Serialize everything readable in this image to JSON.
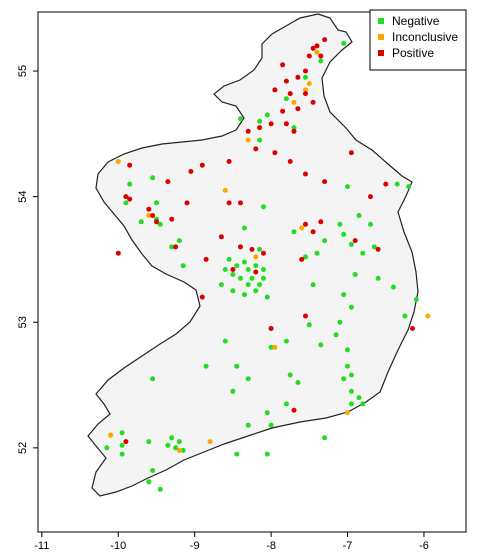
{
  "chart_data": {
    "type": "scatter",
    "title": "",
    "xlabel": "",
    "ylabel": "",
    "xlim": [
      -11.05,
      -5.45
    ],
    "ylim": [
      51.33,
      55.47
    ],
    "x_ticks": [
      -11,
      -10,
      -9,
      -8,
      -7,
      -6
    ],
    "y_ticks": [
      52,
      53,
      54,
      55
    ],
    "x_tick_labels": [
      "-11",
      "-10",
      "-9",
      "-8",
      "-7",
      "-6"
    ],
    "y_tick_labels": [
      "52",
      "53",
      "54",
      "55"
    ],
    "legend_position": "top-right",
    "series": [
      {
        "name": "Negative",
        "color": "#22dd22",
        "points": [
          [
            -7.05,
            55.22
          ],
          [
            -7.35,
            55.08
          ],
          [
            -7.55,
            54.95
          ],
          [
            -7.8,
            54.78
          ],
          [
            -8.05,
            54.65
          ],
          [
            -8.15,
            54.6
          ],
          [
            -8.4,
            54.62
          ],
          [
            -7.7,
            54.55
          ],
          [
            -8.15,
            54.45
          ],
          [
            -9.85,
            54.1
          ],
          [
            -9.9,
            53.95
          ],
          [
            -9.55,
            54.15
          ],
          [
            -9.5,
            53.95
          ],
          [
            -9.5,
            53.82
          ],
          [
            -9.45,
            53.78
          ],
          [
            -9.7,
            53.8
          ],
          [
            -9.3,
            53.6
          ],
          [
            -9.2,
            53.65
          ],
          [
            -9.15,
            53.45
          ],
          [
            -8.1,
            53.92
          ],
          [
            -7.0,
            54.08
          ],
          [
            -6.85,
            53.85
          ],
          [
            -6.35,
            54.1
          ],
          [
            -6.2,
            54.08
          ],
          [
            -7.1,
            53.78
          ],
          [
            -6.7,
            53.78
          ],
          [
            -6.95,
            53.62
          ],
          [
            -7.05,
            53.7
          ],
          [
            -6.65,
            53.6
          ],
          [
            -6.8,
            53.55
          ],
          [
            -7.3,
            53.65
          ],
          [
            -7.4,
            53.55
          ],
          [
            -7.55,
            53.52
          ],
          [
            -7.7,
            53.72
          ],
          [
            -8.35,
            53.75
          ],
          [
            -8.4,
            53.6
          ],
          [
            -8.15,
            53.58
          ],
          [
            -8.55,
            53.5
          ],
          [
            -8.35,
            53.48
          ],
          [
            -8.45,
            53.45
          ],
          [
            -8.3,
            53.42
          ],
          [
            -8.2,
            53.45
          ],
          [
            -8.1,
            53.42
          ],
          [
            -8.6,
            53.42
          ],
          [
            -8.5,
            53.38
          ],
          [
            -8.4,
            53.35
          ],
          [
            -8.25,
            53.35
          ],
          [
            -8.1,
            53.35
          ],
          [
            -8.65,
            53.3
          ],
          [
            -8.5,
            53.25
          ],
          [
            -8.35,
            53.22
          ],
          [
            -8.2,
            53.25
          ],
          [
            -8.05,
            53.2
          ],
          [
            -8.15,
            53.3
          ],
          [
            -8.3,
            53.3
          ],
          [
            -7.45,
            53.3
          ],
          [
            -6.9,
            53.38
          ],
          [
            -6.6,
            53.35
          ],
          [
            -6.4,
            53.28
          ],
          [
            -6.1,
            53.18
          ],
          [
            -6.25,
            53.05
          ],
          [
            -7.05,
            53.22
          ],
          [
            -6.95,
            53.12
          ],
          [
            -7.1,
            53.0
          ],
          [
            -7.15,
            52.9
          ],
          [
            -7.5,
            52.98
          ],
          [
            -7.35,
            52.82
          ],
          [
            -7.8,
            52.85
          ],
          [
            -8.0,
            52.95
          ],
          [
            -8.6,
            52.85
          ],
          [
            -8.45,
            52.65
          ],
          [
            -8.0,
            52.8
          ],
          [
            -8.3,
            52.55
          ],
          [
            -7.75,
            52.58
          ],
          [
            -7.0,
            52.78
          ],
          [
            -7.05,
            52.55
          ],
          [
            -6.95,
            52.45
          ],
          [
            -6.85,
            52.4
          ],
          [
            -6.95,
            52.35
          ],
          [
            -6.8,
            52.35
          ],
          [
            -7.0,
            52.65
          ],
          [
            -6.95,
            52.58
          ],
          [
            -7.65,
            52.52
          ],
          [
            -7.8,
            52.35
          ],
          [
            -8.05,
            52.28
          ],
          [
            -8.5,
            52.45
          ],
          [
            -8.0,
            52.18
          ],
          [
            -8.3,
            52.18
          ],
          [
            -7.3,
            52.08
          ],
          [
            -8.05,
            51.95
          ],
          [
            -8.45,
            51.95
          ],
          [
            -8.85,
            52.65
          ],
          [
            -9.55,
            52.55
          ],
          [
            -9.95,
            52.12
          ],
          [
            -9.95,
            52.02
          ],
          [
            -10.15,
            52.0
          ],
          [
            -9.95,
            51.95
          ],
          [
            -9.6,
            52.05
          ],
          [
            -9.3,
            52.08
          ],
          [
            -9.25,
            52.0
          ],
          [
            -9.2,
            52.05
          ],
          [
            -9.35,
            52.02
          ],
          [
            -9.15,
            51.98
          ],
          [
            -9.55,
            51.82
          ],
          [
            -9.6,
            51.73
          ],
          [
            -9.45,
            51.67
          ]
        ]
      },
      {
        "name": "Inconclusive",
        "color": "#ffa500",
        "points": [
          [
            -7.4,
            55.15
          ],
          [
            -7.55,
            54.85
          ],
          [
            -7.5,
            54.9
          ],
          [
            -7.7,
            54.75
          ],
          [
            -8.3,
            54.45
          ],
          [
            -10.0,
            54.28
          ],
          [
            -8.6,
            54.05
          ],
          [
            -7.6,
            53.75
          ],
          [
            -9.6,
            53.85
          ],
          [
            -8.2,
            53.52
          ],
          [
            -7.95,
            52.8
          ],
          [
            -7.0,
            52.28
          ],
          [
            -8.8,
            52.05
          ],
          [
            -9.2,
            51.98
          ],
          [
            -10.1,
            52.1
          ],
          [
            -5.95,
            53.05
          ]
        ]
      },
      {
        "name": "Positive",
        "color": "#dd0000",
        "points": [
          [
            -7.4,
            55.2
          ],
          [
            -7.45,
            55.18
          ],
          [
            -7.3,
            55.25
          ],
          [
            -7.35,
            55.12
          ],
          [
            -7.5,
            55.12
          ],
          [
            -7.55,
            55.0
          ],
          [
            -7.65,
            54.95
          ],
          [
            -7.85,
            55.05
          ],
          [
            -7.8,
            54.92
          ],
          [
            -7.95,
            54.85
          ],
          [
            -7.75,
            54.82
          ],
          [
            -7.55,
            54.82
          ],
          [
            -7.45,
            54.75
          ],
          [
            -7.65,
            54.7
          ],
          [
            -7.85,
            54.68
          ],
          [
            -8.0,
            54.58
          ],
          [
            -8.15,
            54.55
          ],
          [
            -8.3,
            54.52
          ],
          [
            -7.7,
            54.52
          ],
          [
            -7.8,
            54.58
          ],
          [
            -8.2,
            54.38
          ],
          [
            -7.95,
            54.35
          ],
          [
            -7.75,
            54.28
          ],
          [
            -7.55,
            54.18
          ],
          [
            -7.3,
            54.12
          ],
          [
            -6.95,
            54.35
          ],
          [
            -6.7,
            54.0
          ],
          [
            -6.5,
            54.1
          ],
          [
            -8.55,
            54.28
          ],
          [
            -8.9,
            54.25
          ],
          [
            -9.05,
            54.2
          ],
          [
            -9.35,
            54.12
          ],
          [
            -9.85,
            54.25
          ],
          [
            -9.9,
            54.0
          ],
          [
            -9.85,
            53.98
          ],
          [
            -9.6,
            53.9
          ],
          [
            -9.55,
            53.85
          ],
          [
            -9.5,
            53.8
          ],
          [
            -9.3,
            53.82
          ],
          [
            -9.1,
            53.95
          ],
          [
            -8.55,
            53.95
          ],
          [
            -8.4,
            53.95
          ],
          [
            -7.55,
            53.78
          ],
          [
            -7.35,
            53.8
          ],
          [
            -7.45,
            53.72
          ],
          [
            -6.9,
            53.65
          ],
          [
            -6.6,
            53.58
          ],
          [
            -7.6,
            53.5
          ],
          [
            -8.65,
            53.68
          ],
          [
            -8.4,
            53.6
          ],
          [
            -8.25,
            53.58
          ],
          [
            -8.1,
            53.55
          ],
          [
            -9.25,
            53.6
          ],
          [
            -8.85,
            53.5
          ],
          [
            -8.5,
            53.42
          ],
          [
            -10.0,
            53.55
          ],
          [
            -8.2,
            53.4
          ],
          [
            -8.9,
            53.2
          ],
          [
            -8.0,
            52.95
          ],
          [
            -7.55,
            53.05
          ],
          [
            -6.15,
            52.95
          ],
          [
            -7.7,
            52.3
          ],
          [
            -9.9,
            52.05
          ]
        ]
      }
    ]
  },
  "legend": {
    "items": [
      {
        "label": "Negative",
        "color": "#22dd22"
      },
      {
        "label": "Inconclusive",
        "color": "#ffa500"
      },
      {
        "label": "Positive",
        "color": "#dd0000"
      }
    ]
  },
  "map": {
    "land_color": "#f4f4f4",
    "outline_color": "#222222"
  }
}
